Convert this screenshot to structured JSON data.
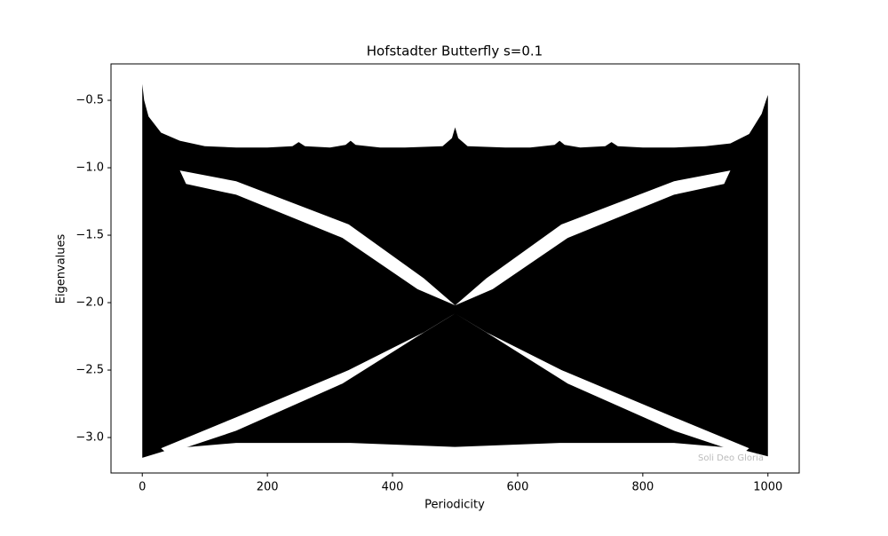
{
  "chart_data": {
    "type": "region",
    "title": "Hofstadter Butterfly s=0.1",
    "x_label": "Periodicity",
    "y_label": "Eigenvalues",
    "annotation": "Soli Deo Gloria",
    "xlim": [
      -50,
      1050
    ],
    "ylim": [
      -3.263,
      -0.23
    ],
    "xticks": [
      0,
      200,
      400,
      600,
      800,
      1000
    ],
    "yticks": [
      {
        "value": -0.5,
        "label": "−0.5"
      },
      {
        "value": -1.0,
        "label": "−1.0"
      },
      {
        "value": -1.5,
        "label": "−1.5"
      },
      {
        "value": -2.0,
        "label": "−2.0"
      },
      {
        "value": -2.5,
        "label": "−2.5"
      },
      {
        "value": -3.0,
        "label": "−3.0"
      }
    ],
    "series": [
      {
        "color": "#000000",
        "x": [
          0,
          3,
          10,
          30,
          60,
          100,
          150,
          200,
          240,
          250,
          260,
          300,
          325,
          333,
          341,
          380,
          420,
          480,
          495,
          500,
          505,
          520,
          580,
          620,
          659,
          667,
          675,
          700,
          740,
          750,
          760,
          800,
          850,
          900,
          940,
          970,
          990,
          997,
          1000,
          1000,
          950,
          850,
          667,
          500,
          333,
          150,
          50,
          0
        ],
        "y": [
          -0.38,
          -0.5,
          -0.62,
          -0.74,
          -0.8,
          -0.84,
          -0.85,
          -0.85,
          -0.84,
          -0.81,
          -0.84,
          -0.85,
          -0.83,
          -0.8,
          -0.83,
          -0.85,
          -0.85,
          -0.84,
          -0.78,
          -0.7,
          -0.78,
          -0.84,
          -0.85,
          -0.85,
          -0.83,
          -0.8,
          -0.83,
          -0.85,
          -0.84,
          -0.81,
          -0.84,
          -0.85,
          -0.85,
          -0.84,
          -0.82,
          -0.75,
          -0.6,
          -0.5,
          -0.46,
          -3.14,
          -3.08,
          -3.04,
          -3.04,
          -3.07,
          -3.04,
          -3.04,
          -3.08,
          -3.15
        ]
      },
      {
        "color": "#ffffff",
        "x": [
          60,
          150,
          330,
          450,
          500,
          440,
          320,
          150,
          70
        ],
        "y": [
          -1.02,
          -1.1,
          -1.42,
          -1.82,
          -2.02,
          -1.9,
          -1.52,
          -1.2,
          -1.12
        ]
      },
      {
        "color": "#ffffff",
        "x": [
          940,
          850,
          670,
          550,
          500,
          560,
          680,
          850,
          930
        ],
        "y": [
          -1.02,
          -1.1,
          -1.42,
          -1.82,
          -2.02,
          -1.9,
          -1.52,
          -1.2,
          -1.12
        ]
      },
      {
        "color": "#ffffff",
        "x": [
          30,
          150,
          330,
          450,
          500,
          440,
          320,
          150,
          40
        ],
        "y": [
          -3.08,
          -2.85,
          -2.5,
          -2.22,
          -2.08,
          -2.25,
          -2.6,
          -2.95,
          -3.12
        ]
      },
      {
        "color": "#ffffff",
        "x": [
          970,
          850,
          670,
          550,
          500,
          560,
          680,
          850,
          960
        ],
        "y": [
          -3.08,
          -2.85,
          -2.5,
          -2.22,
          -2.08,
          -2.25,
          -2.6,
          -2.95,
          -3.12
        ]
      }
    ]
  }
}
